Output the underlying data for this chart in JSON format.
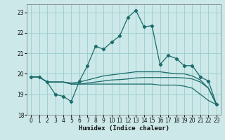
{
  "xlabel": "Humidex (Indice chaleur)",
  "ylabel": "",
  "background_color": "#cce8e8",
  "grid_color": "#99cccc",
  "line_color": "#1a6b6b",
  "xlim": [
    -0.5,
    23.5
  ],
  "ylim": [
    18.0,
    23.4
  ],
  "yticks": [
    18,
    19,
    20,
    21,
    22,
    23
  ],
  "xticks": [
    0,
    1,
    2,
    3,
    4,
    5,
    6,
    7,
    8,
    9,
    10,
    11,
    12,
    13,
    14,
    15,
    16,
    17,
    18,
    19,
    20,
    21,
    22,
    23
  ],
  "line1_x": [
    0,
    1,
    2,
    3,
    4,
    5,
    6,
    7,
    8,
    9,
    10,
    11,
    12,
    13,
    14,
    15,
    16,
    17,
    18,
    19,
    20,
    21,
    22,
    23
  ],
  "line1_y": [
    19.85,
    19.85,
    19.6,
    19.0,
    18.9,
    18.65,
    19.65,
    20.4,
    21.35,
    21.2,
    21.55,
    21.85,
    22.75,
    23.1,
    22.3,
    22.35,
    20.45,
    20.9,
    20.75,
    20.4,
    20.4,
    19.85,
    19.65,
    18.5
  ],
  "line2_x": [
    0,
    1,
    2,
    3,
    4,
    5,
    6,
    7,
    8,
    9,
    10,
    11,
    12,
    13,
    14,
    15,
    16,
    17,
    18,
    19,
    20,
    21,
    22,
    23
  ],
  "line2_y": [
    19.85,
    19.85,
    19.6,
    19.6,
    19.6,
    19.55,
    19.6,
    19.7,
    19.8,
    19.9,
    19.95,
    20.0,
    20.05,
    20.1,
    20.1,
    20.1,
    20.1,
    20.05,
    20.0,
    20.0,
    19.9,
    19.7,
    19.3,
    18.5
  ],
  "line3_x": [
    0,
    1,
    2,
    3,
    4,
    5,
    6,
    7,
    8,
    9,
    10,
    11,
    12,
    13,
    14,
    15,
    16,
    17,
    18,
    19,
    20,
    21,
    22,
    23
  ],
  "line3_y": [
    19.85,
    19.85,
    19.6,
    19.6,
    19.6,
    19.5,
    19.5,
    19.55,
    19.6,
    19.65,
    19.7,
    19.72,
    19.75,
    19.8,
    19.82,
    19.82,
    19.82,
    19.82,
    19.82,
    19.8,
    19.75,
    19.6,
    19.3,
    18.5
  ],
  "line4_x": [
    0,
    1,
    2,
    3,
    4,
    5,
    6,
    7,
    8,
    9,
    10,
    11,
    12,
    13,
    14,
    15,
    16,
    17,
    18,
    19,
    20,
    21,
    22,
    23
  ],
  "line4_y": [
    19.85,
    19.85,
    19.6,
    19.6,
    19.6,
    19.5,
    19.5,
    19.5,
    19.5,
    19.5,
    19.5,
    19.5,
    19.5,
    19.5,
    19.5,
    19.5,
    19.45,
    19.45,
    19.45,
    19.4,
    19.3,
    19.0,
    18.7,
    18.5
  ]
}
